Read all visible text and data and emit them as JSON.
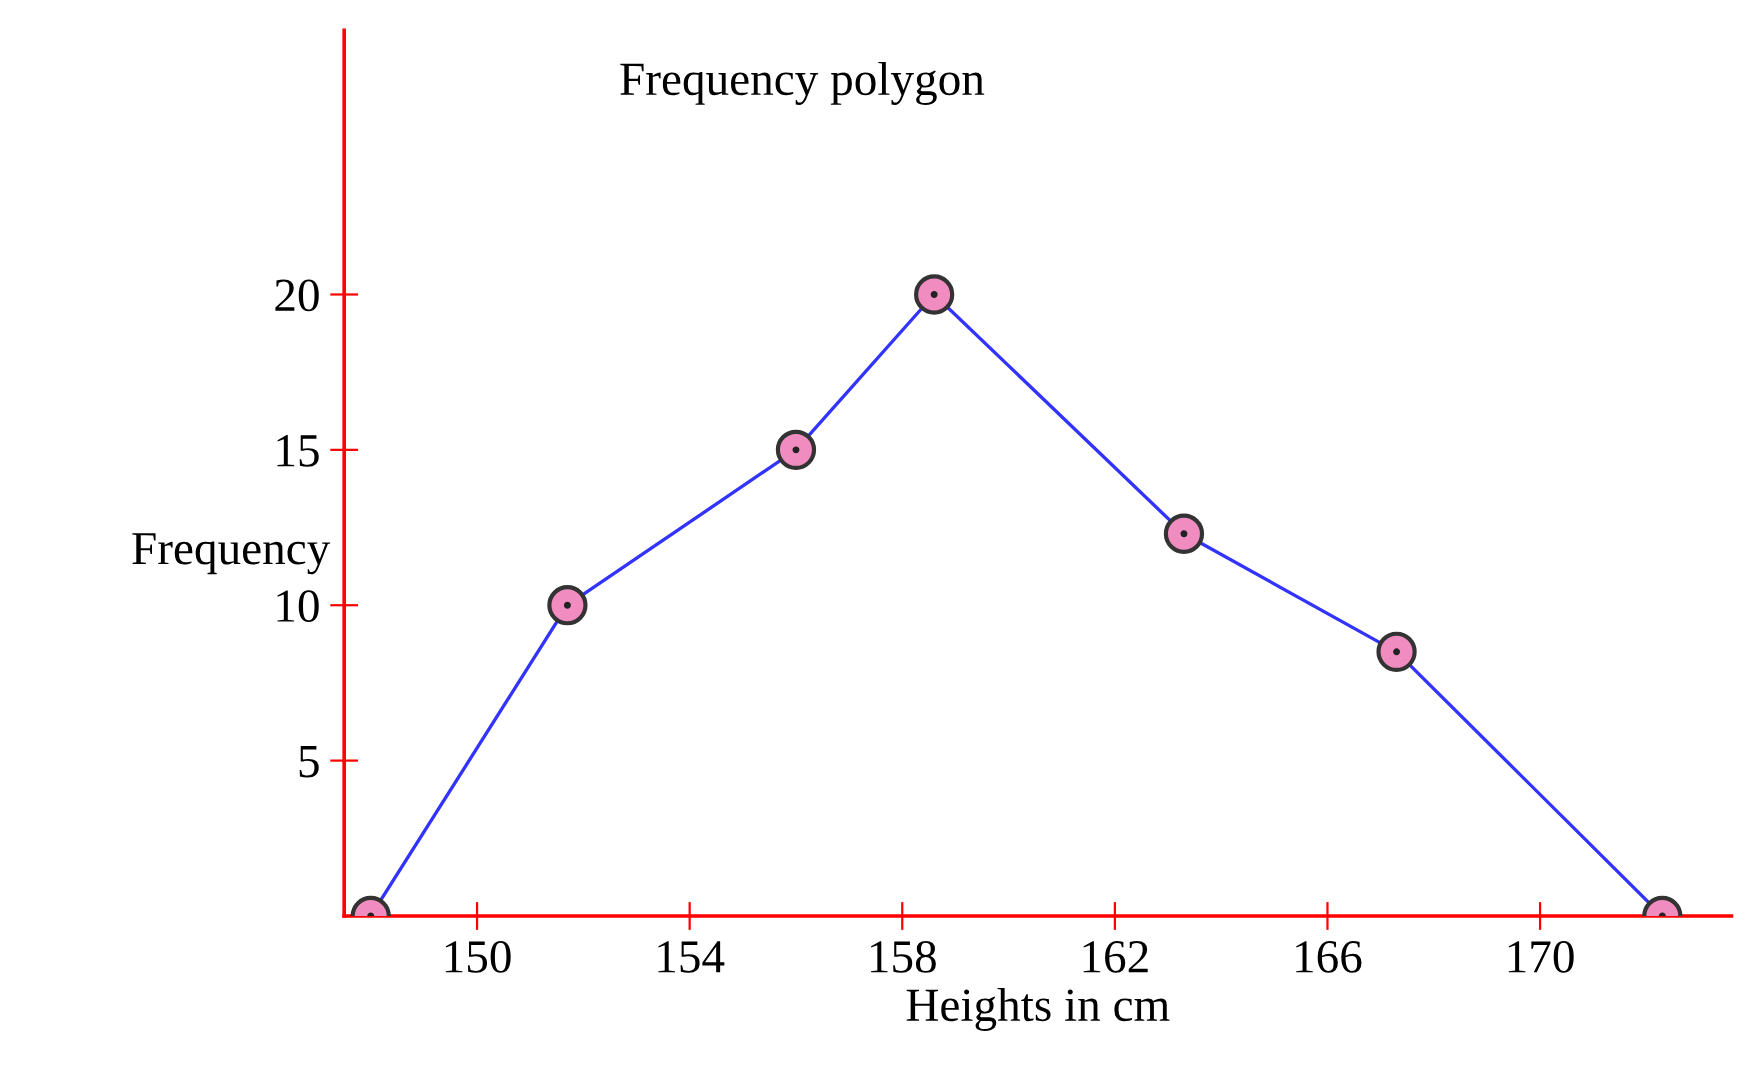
{
  "chart_data": {
    "type": "line",
    "title": "Frequency polygon",
    "xlabel": "Heights in cm",
    "ylabel": "Frequency",
    "x": [
      148.0,
      151.7,
      156.0,
      158.6,
      163.3,
      167.3,
      172.3
    ],
    "series": [
      {
        "color": "#3333ff",
        "values": [
          0,
          10,
          15,
          20,
          12.3,
          8.5,
          0
        ]
      }
    ],
    "xlim": [
      147.5,
      173.6
    ],
    "ylim": [
      0,
      28.5
    ],
    "xticks": [
      150,
      154,
      158,
      162,
      166,
      170
    ],
    "yticks": [
      5,
      10,
      15,
      20
    ],
    "grid": false,
    "legend": false,
    "marker": "circle",
    "line_style": "solid"
  }
}
